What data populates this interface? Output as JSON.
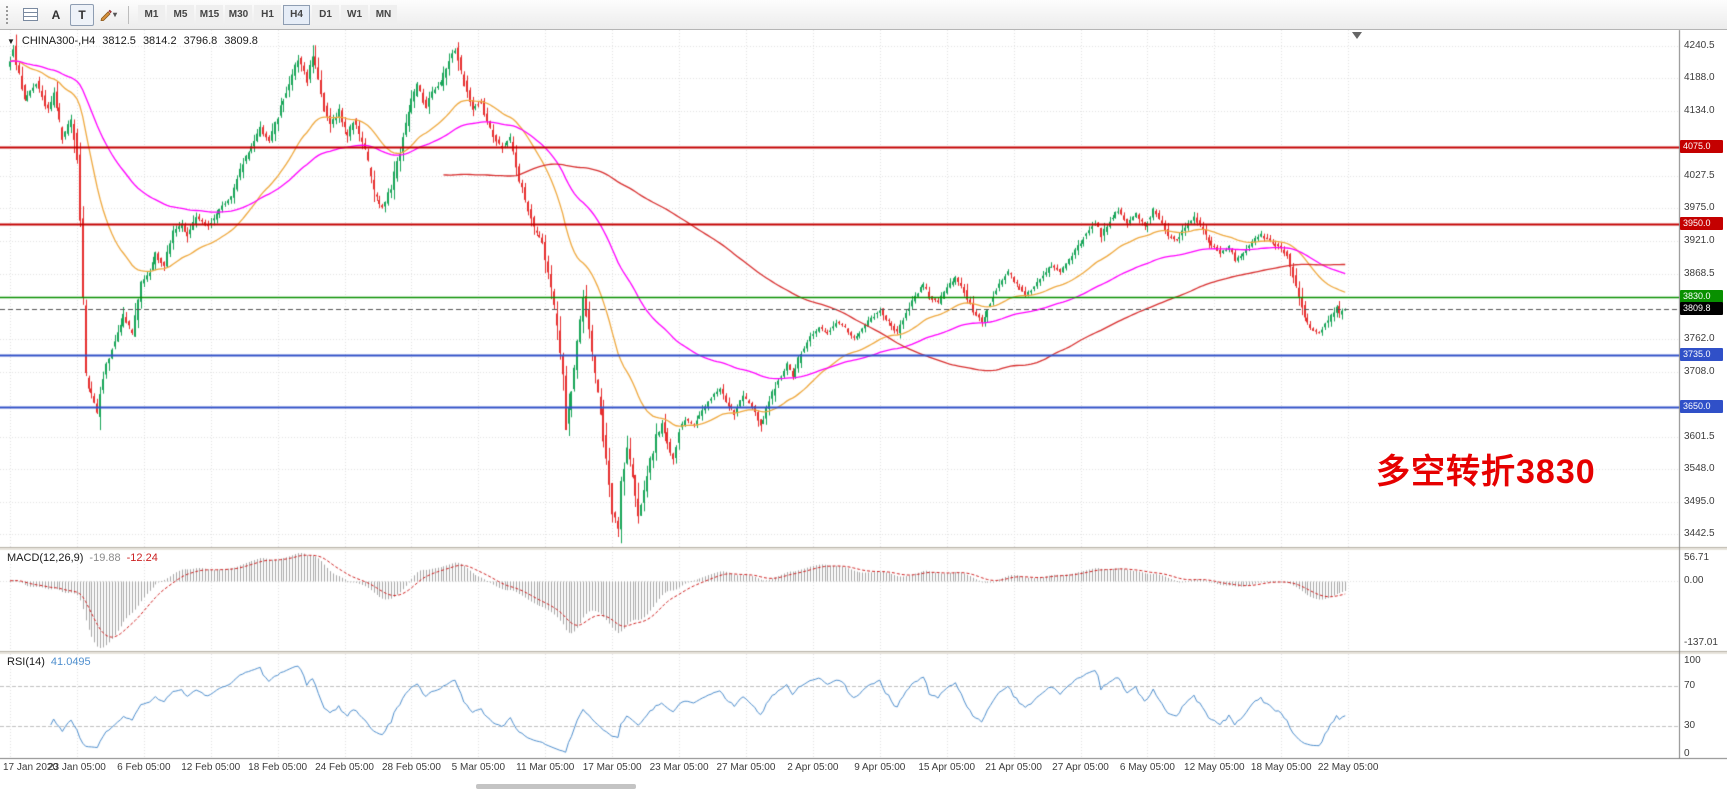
{
  "toolbar": {
    "tools": {
      "arrow_label": "A",
      "text_label": "T",
      "caret_icon": "▾"
    },
    "timeframes": [
      {
        "label": "M1",
        "active": false
      },
      {
        "label": "M5",
        "active": false
      },
      {
        "label": "M15",
        "active": false
      },
      {
        "label": "M30",
        "active": false
      },
      {
        "label": "H1",
        "active": false
      },
      {
        "label": "H4",
        "active": true
      },
      {
        "label": "D1",
        "active": false
      },
      {
        "label": "W1",
        "active": false
      },
      {
        "label": "MN",
        "active": false
      }
    ]
  },
  "chart": {
    "legend": {
      "dropdown_icon": "▼",
      "symbol": "CHINA300-,H4",
      "open": "3812.5",
      "high": "3814.2",
      "low": "3796.8",
      "close": "3809.8"
    },
    "annotation": {
      "text": "多空转折3830",
      "color": "#e60000"
    },
    "price_axis": {
      "range": {
        "top": 4267.0,
        "bottom": 3421.0
      },
      "labels": [
        4240.5,
        4188.0,
        4134.0,
        4027.5,
        3975.0,
        3921.0,
        3868.5,
        3762.0,
        3708.0,
        3601.5,
        3548.0,
        3495.0,
        3442.5
      ]
    },
    "levels": [
      {
        "price": 4075.0,
        "label": "4075.0",
        "color": "#c40000",
        "width": 2
      },
      {
        "price": 3950.0,
        "label": "3950.0",
        "color": "#c40000",
        "width": 2
      },
      {
        "price": 3830.0,
        "label": "3830.0",
        "color": "#089000",
        "width": 1.5
      },
      {
        "price": 3735.0,
        "label": "3735.0",
        "color": "#3050c8",
        "width": 2
      },
      {
        "price": 3650.0,
        "label": "3650.0",
        "color": "#3050c8",
        "width": 2
      }
    ],
    "current_price": {
      "price": 3809.8,
      "label": "3809.8",
      "color": "#000000"
    }
  },
  "macd": {
    "name": "MACD(12,26,9)",
    "main_value": "-19.88",
    "signal_value": "-12.24",
    "axis": {
      "top": "56.71",
      "zero": "0.00",
      "bottom": "-137.01"
    },
    "colors": {
      "histogram": "#a8a8a8",
      "signal": "#d02020"
    }
  },
  "rsi": {
    "name": "RSI(14)",
    "value": "41.0495",
    "axis": [
      "100",
      "70",
      "30",
      "0"
    ],
    "levels": [
      70,
      30
    ],
    "color": "#4f8fce"
  },
  "time_axis": {
    "label_step_bars": 23,
    "labels": [
      "17 Jan 2020",
      "23 Jan 05:00",
      "6 Feb 05:00",
      "12 Feb 05:00",
      "18 Feb 05:00",
      "24 Feb 05:00",
      "28 Feb 05:00",
      "5 Mar 05:00",
      "11 Mar 05:00",
      "17 Mar 05:00",
      "23 Mar 05:00",
      "27 Mar 05:00",
      "2 Apr 05:00",
      "9 Apr 05:00",
      "15 Apr 05:00",
      "21 Apr 05:00",
      "27 Apr 05:00",
      "6 May 05:00",
      "12 May 05:00",
      "18 May 05:00",
      "22 May 05:00"
    ]
  },
  "chart_data": {
    "type": "candlestick",
    "symbol": "CHINA300-",
    "timeframe": "H4",
    "visible_price_range": {
      "min": 3442.5,
      "max": 4240.5
    },
    "candles_count": 460,
    "seed": 20200522,
    "last_close": 3809.8,
    "price_path_anchors": [
      [
        0,
        4205
      ],
      [
        2,
        4235
      ],
      [
        6,
        4150
      ],
      [
        10,
        4180
      ],
      [
        14,
        4135
      ],
      [
        16,
        4160
      ],
      [
        19,
        4090
      ],
      [
        22,
        4120
      ],
      [
        24,
        4060
      ],
      [
        25,
        3950
      ],
      [
        27,
        3700
      ],
      [
        31,
        3640
      ],
      [
        33,
        3705
      ],
      [
        37,
        3760
      ],
      [
        40,
        3800
      ],
      [
        43,
        3770
      ],
      [
        46,
        3850
      ],
      [
        49,
        3870
      ],
      [
        51,
        3900
      ],
      [
        54,
        3880
      ],
      [
        57,
        3935
      ],
      [
        60,
        3950
      ],
      [
        62,
        3930
      ],
      [
        65,
        3960
      ],
      [
        69,
        3945
      ],
      [
        73,
        3975
      ],
      [
        77,
        3995
      ],
      [
        81,
        4050
      ],
      [
        84,
        4075
      ],
      [
        87,
        4105
      ],
      [
        90,
        4085
      ],
      [
        94,
        4140
      ],
      [
        97,
        4180
      ],
      [
        100,
        4220
      ],
      [
        103,
        4185
      ],
      [
        105,
        4230
      ],
      [
        109,
        4140
      ],
      [
        111,
        4110
      ],
      [
        114,
        4135
      ],
      [
        117,
        4090
      ],
      [
        119,
        4120
      ],
      [
        123,
        4070
      ],
      [
        126,
        4000
      ],
      [
        129,
        3975
      ],
      [
        132,
        4010
      ],
      [
        136,
        4090
      ],
      [
        139,
        4150
      ],
      [
        141,
        4175
      ],
      [
        144,
        4140
      ],
      [
        146,
        4165
      ],
      [
        149,
        4180
      ],
      [
        152,
        4220
      ],
      [
        154,
        4235
      ],
      [
        157,
        4180
      ],
      [
        160,
        4140
      ],
      [
        163,
        4150
      ],
      [
        165,
        4115
      ],
      [
        168,
        4085
      ],
      [
        170,
        4072
      ],
      [
        173,
        4090
      ],
      [
        176,
        4020
      ],
      [
        179,
        3975
      ],
      [
        181,
        3940
      ],
      [
        184,
        3920
      ],
      [
        186,
        3870
      ],
      [
        189,
        3780
      ],
      [
        191,
        3700
      ],
      [
        192,
        3620
      ],
      [
        194,
        3680
      ],
      [
        196,
        3755
      ],
      [
        198,
        3830
      ],
      [
        200,
        3780
      ],
      [
        202,
        3700
      ],
      [
        204,
        3640
      ],
      [
        206,
        3560
      ],
      [
        208,
        3480
      ],
      [
        210,
        3450
      ],
      [
        211,
        3520
      ],
      [
        213,
        3580
      ],
      [
        215,
        3540
      ],
      [
        217,
        3470
      ],
      [
        219,
        3510
      ],
      [
        221,
        3560
      ],
      [
        223,
        3600
      ],
      [
        225,
        3620
      ],
      [
        227,
        3590
      ],
      [
        229,
        3565
      ],
      [
        231,
        3615
      ],
      [
        233,
        3630
      ],
      [
        236,
        3620
      ],
      [
        239,
        3645
      ],
      [
        242,
        3665
      ],
      [
        245,
        3680
      ],
      [
        247,
        3660
      ],
      [
        250,
        3640
      ],
      [
        253,
        3670
      ],
      [
        256,
        3650
      ],
      [
        259,
        3620
      ],
      [
        262,
        3660
      ],
      [
        265,
        3695
      ],
      [
        268,
        3720
      ],
      [
        270,
        3700
      ],
      [
        273,
        3740
      ],
      [
        276,
        3765
      ],
      [
        279,
        3780
      ],
      [
        282,
        3770
      ],
      [
        285,
        3790
      ],
      [
        288,
        3780
      ],
      [
        291,
        3762
      ],
      [
        294,
        3778
      ],
      [
        297,
        3795
      ],
      [
        300,
        3810
      ],
      [
        303,
        3788
      ],
      [
        306,
        3772
      ],
      [
        309,
        3805
      ],
      [
        312,
        3832
      ],
      [
        315,
        3850
      ],
      [
        317,
        3830
      ],
      [
        320,
        3822
      ],
      [
        323,
        3845
      ],
      [
        326,
        3862
      ],
      [
        329,
        3840
      ],
      [
        332,
        3808
      ],
      [
        335,
        3790
      ],
      [
        338,
        3822
      ],
      [
        341,
        3852
      ],
      [
        344,
        3872
      ],
      [
        347,
        3850
      ],
      [
        350,
        3832
      ],
      [
        353,
        3848
      ],
      [
        356,
        3865
      ],
      [
        359,
        3882
      ],
      [
        362,
        3872
      ],
      [
        365,
        3892
      ],
      [
        368,
        3912
      ],
      [
        371,
        3935
      ],
      [
        374,
        3952
      ],
      [
        376,
        3930
      ],
      [
        379,
        3956
      ],
      [
        382,
        3972
      ],
      [
        385,
        3950
      ],
      [
        388,
        3966
      ],
      [
        391,
        3945
      ],
      [
        394,
        3972
      ],
      [
        397,
        3950
      ],
      [
        399,
        3930
      ],
      [
        402,
        3922
      ],
      [
        405,
        3945
      ],
      [
        408,
        3962
      ],
      [
        411,
        3940
      ],
      [
        413,
        3920
      ],
      [
        417,
        3900
      ],
      [
        420,
        3912
      ],
      [
        422,
        3890
      ],
      [
        425,
        3902
      ],
      [
        428,
        3922
      ],
      [
        431,
        3932
      ],
      [
        434,
        3920
      ],
      [
        437,
        3912
      ],
      [
        440,
        3898
      ],
      [
        443,
        3845
      ],
      [
        446,
        3795
      ],
      [
        448,
        3778
      ],
      [
        451,
        3772
      ],
      [
        454,
        3792
      ],
      [
        457,
        3812
      ],
      [
        458,
        3800
      ],
      [
        459,
        3808
      ]
    ],
    "moving_averages": [
      {
        "name": "fast",
        "type": "ema",
        "period": 34,
        "color": "#efa93f"
      },
      {
        "name": "mid",
        "type": "ema",
        "period": 80,
        "color": "#ff00ff"
      },
      {
        "name": "slow",
        "type": "sma",
        "period": 150,
        "color": "#d83030"
      }
    ],
    "indicators": [
      {
        "name": "MACD",
        "params": [
          12,
          26,
          9
        ],
        "axis_max": 56.71,
        "axis_min": -137.01
      },
      {
        "name": "RSI",
        "params": [
          14
        ],
        "levels": [
          70,
          30
        ]
      }
    ]
  }
}
